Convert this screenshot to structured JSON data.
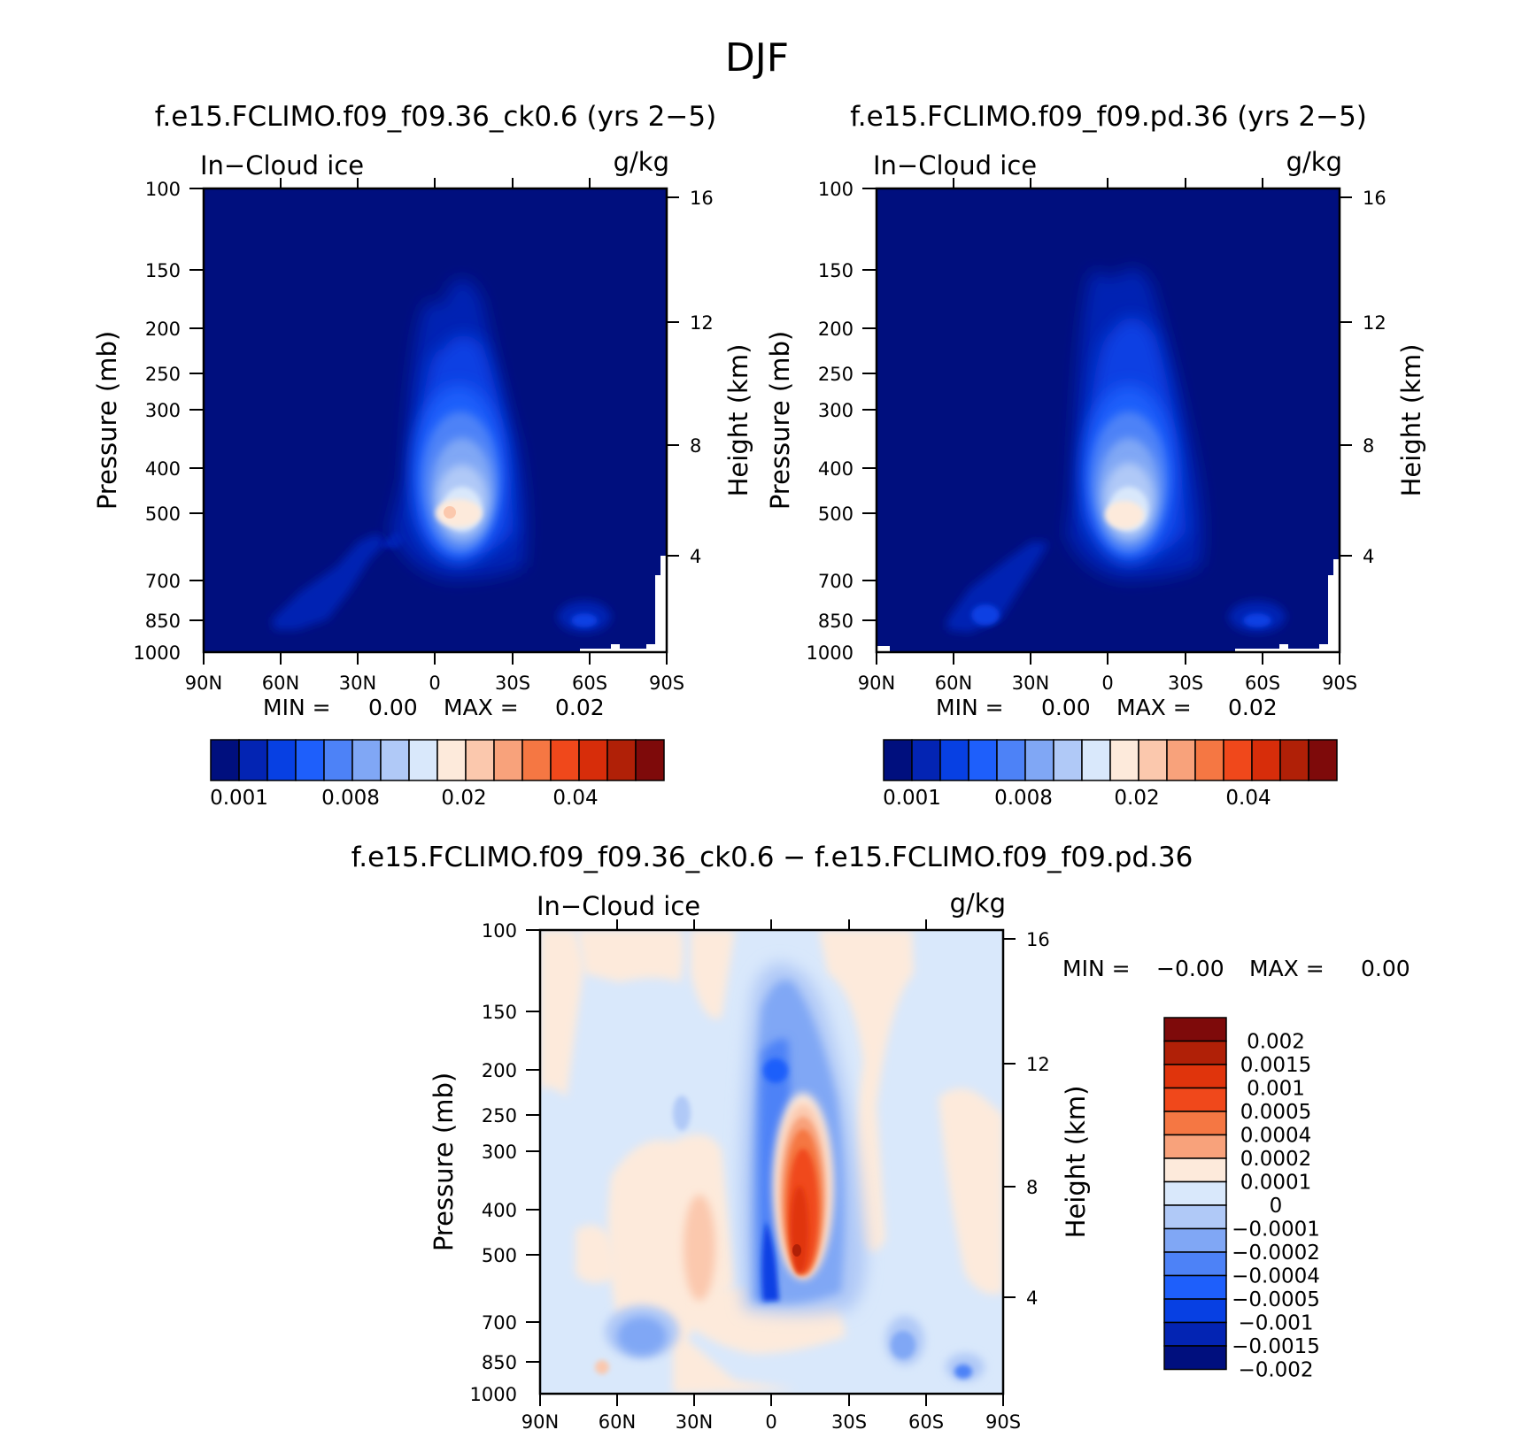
{
  "figure": {
    "season": "DJF",
    "panel_titles": [
      "f.e15.FCLIMO.f09_f09.36_ck0.6 (yrs 2−5)",
      "f.e15.FCLIMO.f09_f09.pd.36 (yrs 2−5)",
      "f.e15.FCLIMO.f09_f09.36_ck0.6 − f.e15.FCLIMO.f09_f09.pd.36"
    ],
    "variable": "In−Cloud ice",
    "units": "g/kg",
    "ylabel": "Pressure (mb)",
    "ylabel_right": "Height (km)"
  },
  "minmax": {
    "top_left": {
      "min_label": "MIN =",
      "min": "0.00",
      "max_label": "MAX =",
      "max": "0.02"
    },
    "top_right": {
      "min_label": "MIN =",
      "min": "0.00",
      "max_label": "MAX =",
      "max": "0.02"
    },
    "bottom": {
      "min_label": "MIN =",
      "min": "−0.00",
      "max_label": "MAX =",
      "max": "0.00"
    }
  },
  "colorbar_top": {
    "colors": [
      "#000f7e",
      "#0324b3",
      "#0740e3",
      "#1e5ffb",
      "#4d82f7",
      "#80a7f5",
      "#b0c9f7",
      "#d9e8fb",
      "#fdeadb",
      "#fbc8ad",
      "#f8a27b",
      "#f57743",
      "#f0481b",
      "#d72d0a",
      "#b02007",
      "#7e0a0a"
    ],
    "labels": [
      "0.001",
      "0.008",
      "0.02",
      "0.04"
    ]
  },
  "colorbar_bottom": {
    "colors": [
      "#7e0a0a",
      "#b02007",
      "#e0340c",
      "#f0481b",
      "#f57743",
      "#f8a27b",
      "#fdeadb",
      "#d9e8fb",
      "#b0c9f7",
      "#80a7f5",
      "#4d82f7",
      "#1e5ffb",
      "#0740e3",
      "#0324b3",
      "#000f7e"
    ],
    "labels": [
      "0.002",
      "0.0015",
      "0.001",
      "0.0005",
      "0.0004",
      "0.0002",
      "0.0001",
      "0",
      "−0.0001",
      "−0.0002",
      "−0.0004",
      "−0.0005",
      "−0.001",
      "−0.0015",
      "−0.002"
    ]
  },
  "chart_data": [
    {
      "type": "heatmap",
      "title": "f.e15.FCLIMO.f09_f09.36_ck0.6 (yrs 2−5)",
      "xlabel": "",
      "ylabel": "Pressure (mb)",
      "ylabel_right": "Height (km)",
      "x_ticks": [
        "90N",
        "60N",
        "30N",
        "0",
        "30S",
        "60S",
        "90S"
      ],
      "y_ticks": [
        100,
        150,
        200,
        250,
        300,
        400,
        500,
        700,
        850,
        1000
      ],
      "y_ticks_right": [
        16,
        12,
        8,
        4
      ],
      "ylim": [
        1000,
        100
      ],
      "max_region": {
        "lat": "5S",
        "pressure": 500,
        "value": 0.02
      }
    },
    {
      "type": "heatmap",
      "title": "f.e15.FCLIMO.f09_f09.pd.36 (yrs 2−5)",
      "xlabel": "",
      "ylabel": "Pressure (mb)",
      "ylabel_right": "Height (km)",
      "x_ticks": [
        "90N",
        "60N",
        "30N",
        "0",
        "30S",
        "60S",
        "90S"
      ],
      "y_ticks": [
        100,
        150,
        200,
        250,
        300,
        400,
        500,
        700,
        850,
        1000
      ],
      "y_ticks_right": [
        16,
        12,
        8,
        4
      ],
      "ylim": [
        1000,
        100
      ],
      "max_region": {
        "lat": "5S",
        "pressure": 500,
        "value": 0.02
      }
    },
    {
      "type": "heatmap",
      "title": "f.e15.FCLIMO.f09_f09.36_ck0.6 − f.e15.FCLIMO.f09_f09.pd.36",
      "xlabel": "",
      "ylabel": "Pressure (mb)",
      "ylabel_right": "Height (km)",
      "x_ticks": [
        "90N",
        "60N",
        "30N",
        "0",
        "30S",
        "60S",
        "90S"
      ],
      "y_ticks": [
        100,
        150,
        200,
        250,
        300,
        400,
        500,
        700,
        850,
        1000
      ],
      "y_ticks_right": [
        16,
        12,
        8,
        4
      ],
      "ylim": [
        1000,
        100
      ],
      "max_region": {
        "lat": "10S",
        "pressure": 500,
        "value": 0.002
      },
      "min_region": {
        "lat": "5N",
        "pressure": 600,
        "value": -0.002
      }
    }
  ]
}
